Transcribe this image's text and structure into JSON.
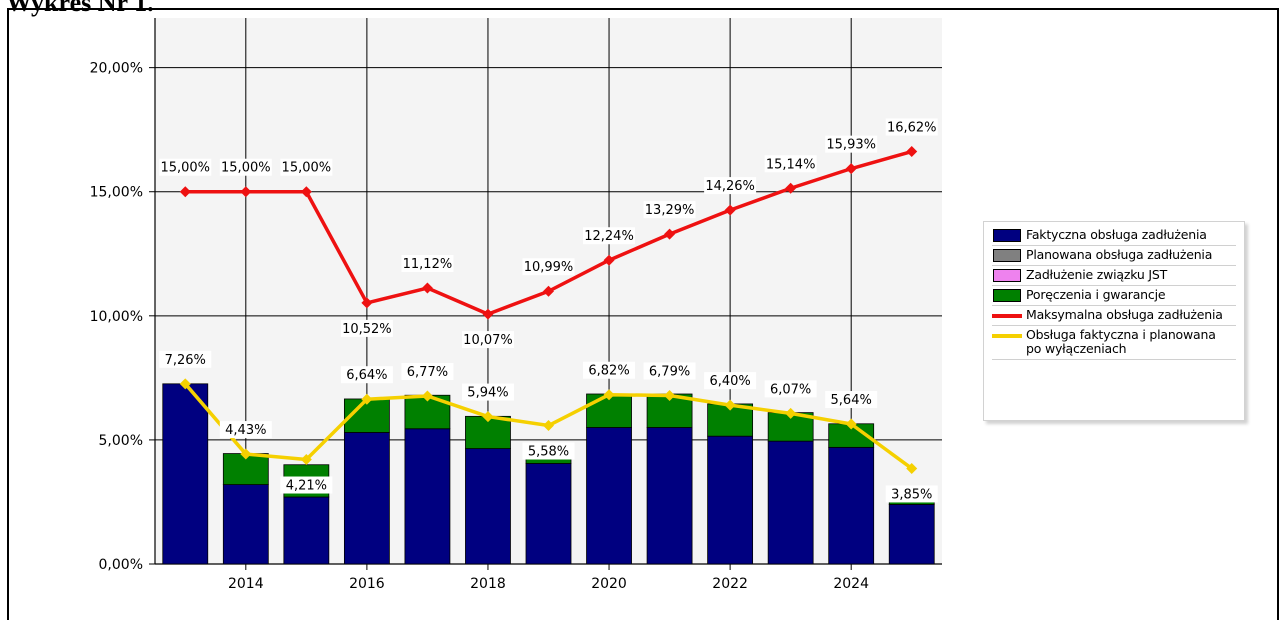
{
  "header": {
    "title": "Wykres Nr 1."
  },
  "chart_data": {
    "type": "bar",
    "x": [
      2013,
      2014,
      2015,
      2016,
      2017,
      2018,
      2019,
      2020,
      2021,
      2022,
      2023,
      2024,
      2025
    ],
    "x_ticks": [
      "2014",
      "2016",
      "2018",
      "2020",
      "2022",
      "2024"
    ],
    "y_ticks": [
      "0,00%",
      "5,00%",
      "10,00%",
      "15,00%",
      "20,00%"
    ],
    "ylim": [
      0,
      22
    ],
    "grid": true,
    "legend_position": "right",
    "series": [
      {
        "name": "Faktyczna obsługa zadłużenia",
        "type": "bar",
        "stack": true,
        "color": "#000080",
        "values": [
          7.26,
          3.2,
          2.7,
          5.3,
          5.45,
          4.65,
          4.05,
          5.5,
          5.5,
          5.15,
          4.95,
          4.7,
          2.4
        ]
      },
      {
        "name": "Planowana obsługa zadłużenia",
        "type": "bar",
        "stack": true,
        "color": "#808080",
        "values": [
          0,
          0,
          0,
          0,
          0,
          0,
          0,
          0,
          0,
          0,
          0,
          0,
          0
        ]
      },
      {
        "name": "Zadłużenie związku JST",
        "type": "bar",
        "stack": true,
        "color": "#ee82ee",
        "values": [
          0,
          0,
          0,
          0,
          0,
          0,
          0,
          0,
          0,
          0,
          0,
          0,
          0
        ]
      },
      {
        "name": "Poręczenia i gwarancje",
        "type": "bar",
        "stack": true,
        "color": "#008000",
        "values": [
          0,
          1.25,
          1.3,
          1.35,
          1.35,
          1.3,
          0.45,
          1.35,
          1.35,
          1.3,
          1.15,
          0.95,
          0.5
        ]
      },
      {
        "name": "Maksymalna obsługa zadłużenia",
        "type": "line",
        "color": "#ee1111",
        "values": [
          15.0,
          15.0,
          15.0,
          10.52,
          11.12,
          10.07,
          10.99,
          12.24,
          13.29,
          14.26,
          15.14,
          15.93,
          16.62
        ],
        "labels": [
          "15,00%",
          "15,00%",
          "15,00%",
          "10,52%",
          "11,12%",
          "10,07%",
          "10,99%",
          "12,24%",
          "13,29%",
          "14,26%",
          "15,14%",
          "15,93%",
          "16,62%"
        ],
        "label_pos": [
          "above",
          "above",
          "above",
          "below",
          "above",
          "below",
          "above",
          "above",
          "above",
          "above",
          "above",
          "above",
          "above"
        ]
      },
      {
        "name": "Obsługa faktyczna i planowana\npo wyłączeniach",
        "type": "line",
        "color": "#f5d000",
        "values": [
          7.26,
          4.43,
          4.21,
          6.64,
          6.77,
          5.94,
          5.58,
          6.82,
          6.79,
          6.4,
          6.07,
          5.64,
          3.85
        ],
        "labels": [
          "7,26%",
          "4,43%",
          "4,21%",
          "6,64%",
          "6,77%",
          "5,94%",
          "5,58%",
          "6,82%",
          "6,79%",
          "6,40%",
          "6,07%",
          "5,64%",
          "3,85%"
        ],
        "label_pos": [
          "above",
          "above",
          "below",
          "above",
          "above",
          "above",
          "below",
          "above",
          "above",
          "above",
          "above",
          "above",
          "below"
        ]
      }
    ]
  }
}
